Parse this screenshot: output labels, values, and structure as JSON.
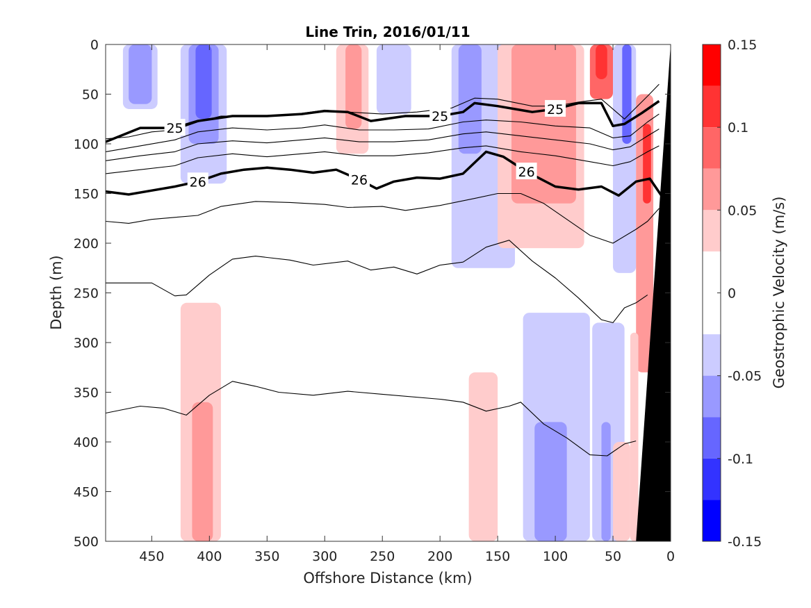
{
  "chart_data": {
    "type": "heatmap",
    "title": "Line Trin, 2016/01/11",
    "xlabel": "Offshore Distance (km)",
    "ylabel": "Depth (m)",
    "xlim": [
      490,
      0
    ],
    "ylim": [
      0,
      500
    ],
    "x_ticks": [
      "450",
      "400",
      "350",
      "300",
      "250",
      "200",
      "150",
      "100",
      "50",
      "0"
    ],
    "y_ticks": [
      "0",
      "50",
      "100",
      "150",
      "200",
      "250",
      "300",
      "350",
      "400",
      "450",
      "500"
    ],
    "colorbar": {
      "label": "Geostrophic Velocity (m/s)",
      "range": [
        -0.15,
        0.15
      ],
      "tick_labels": [
        "0.15",
        "0.1",
        "0.05",
        "0",
        "-0.05",
        "-0.1",
        "-0.15"
      ],
      "levels": [
        {
          "min": 0.125,
          "max": 0.15,
          "color": "#ff0000"
        },
        {
          "min": 0.1,
          "max": 0.125,
          "color": "#ff3333"
        },
        {
          "min": 0.075,
          "max": 0.1,
          "color": "#ff6666"
        },
        {
          "min": 0.05,
          "max": 0.075,
          "color": "#ff9999"
        },
        {
          "min": 0.025,
          "max": 0.05,
          "color": "#ffcccc"
        },
        {
          "min": 0.0,
          "max": 0.025,
          "color": "#ffffff"
        },
        {
          "min": -0.025,
          "max": 0.0,
          "color": "#ffffff"
        },
        {
          "min": -0.05,
          "max": -0.025,
          "color": "#ccccff"
        },
        {
          "min": -0.075,
          "max": -0.05,
          "color": "#9999ff"
        },
        {
          "min": -0.1,
          "max": -0.075,
          "color": "#6666ff"
        },
        {
          "min": -0.125,
          "max": -0.1,
          "color": "#3333ff"
        },
        {
          "min": -0.15,
          "max": -0.125,
          "color": "#0000ff"
        }
      ]
    },
    "velocity_patches": [
      {
        "v": -0.04,
        "x0": 475,
        "x1": 445,
        "y0": 0,
        "y1": 65
      },
      {
        "v": -0.06,
        "x0": 470,
        "x1": 450,
        "y0": 0,
        "y1": 60
      },
      {
        "v": -0.04,
        "x0": 425,
        "x1": 385,
        "y0": 0,
        "y1": 140
      },
      {
        "v": -0.07,
        "x0": 418,
        "x1": 392,
        "y0": 0,
        "y1": 100
      },
      {
        "v": -0.09,
        "x0": 412,
        "x1": 398,
        "y0": 0,
        "y1": 75
      },
      {
        "v": 0.035,
        "x0": 290,
        "x1": 262,
        "y0": 0,
        "y1": 110
      },
      {
        "v": 0.06,
        "x0": 282,
        "x1": 268,
        "y0": 0,
        "y1": 85
      },
      {
        "v": -0.035,
        "x0": 255,
        "x1": 225,
        "y0": 0,
        "y1": 70
      },
      {
        "v": -0.04,
        "x0": 190,
        "x1": 135,
        "y0": 0,
        "y1": 225
      },
      {
        "v": -0.07,
        "x0": 184,
        "x1": 164,
        "y0": 0,
        "y1": 110
      },
      {
        "v": 0.035,
        "x0": 150,
        "x1": 75,
        "y0": 0,
        "y1": 205
      },
      {
        "v": 0.06,
        "x0": 138,
        "x1": 82,
        "y0": 0,
        "y1": 160
      },
      {
        "v": 0.09,
        "x0": 70,
        "x1": 50,
        "y0": 0,
        "y1": 55
      },
      {
        "v": 0.12,
        "x0": 65,
        "x1": 55,
        "y0": 0,
        "y1": 35
      },
      {
        "v": -0.05,
        "x0": 50,
        "x1": 30,
        "y0": 0,
        "y1": 230
      },
      {
        "v": -0.08,
        "x0": 42,
        "x1": 34,
        "y0": 0,
        "y1": 100
      },
      {
        "v": 0.05,
        "x0": 30,
        "x1": 15,
        "y0": 50,
        "y1": 330
      },
      {
        "v": 0.1,
        "x0": 24,
        "x1": 17,
        "y0": 80,
        "y1": 160
      },
      {
        "v": 0.04,
        "x0": 425,
        "x1": 390,
        "y0": 260,
        "y1": 500
      },
      {
        "v": 0.07,
        "x0": 415,
        "x1": 397,
        "y0": 360,
        "y1": 500
      },
      {
        "v": 0.035,
        "x0": 175,
        "x1": 150,
        "y0": 330,
        "y1": 500
      },
      {
        "v": -0.035,
        "x0": 128,
        "x1": 70,
        "y0": 270,
        "y1": 500
      },
      {
        "v": -0.06,
        "x0": 118,
        "x1": 90,
        "y0": 380,
        "y1": 500
      },
      {
        "v": -0.035,
        "x0": 68,
        "x1": 40,
        "y0": 280,
        "y1": 500
      },
      {
        "v": -0.06,
        "x0": 60,
        "x1": 52,
        "y0": 380,
        "y1": 500
      },
      {
        "v": 0.04,
        "x0": 50,
        "x1": 35,
        "y0": 400,
        "y1": 500
      },
      {
        "v": 0.035,
        "x0": 35,
        "x1": 28,
        "y0": 290,
        "y1": 500
      }
    ],
    "density_contours": [
      {
        "label": "",
        "bold": false,
        "points": [
          [
            490,
            95
          ],
          [
            470,
            93
          ],
          [
            450,
            88
          ],
          [
            430,
            86
          ],
          [
            410,
            78
          ],
          [
            390,
            72
          ],
          [
            360,
            72
          ],
          [
            330,
            71
          ],
          [
            300,
            66
          ],
          [
            280,
            68
          ],
          [
            250,
            70
          ],
          [
            220,
            68
          ],
          [
            190,
            64
          ],
          [
            170,
            54
          ],
          [
            150,
            55
          ],
          [
            120,
            62
          ],
          [
            100,
            62
          ],
          [
            80,
            58
          ],
          [
            60,
            55
          ],
          [
            40,
            75
          ],
          [
            20,
            52
          ],
          [
            10,
            40
          ]
        ]
      },
      {
        "label": "25",
        "bold": true,
        "points": [
          [
            490,
            98
          ],
          [
            460,
            84
          ],
          [
            430,
            84
          ],
          [
            410,
            77
          ],
          [
            380,
            72
          ],
          [
            350,
            72
          ],
          [
            320,
            70
          ],
          [
            300,
            67
          ],
          [
            280,
            68
          ],
          [
            260,
            77
          ],
          [
            230,
            72
          ],
          [
            200,
            72
          ],
          [
            180,
            68
          ],
          [
            170,
            59
          ],
          [
            150,
            62
          ],
          [
            120,
            68
          ],
          [
            100,
            65
          ],
          [
            80,
            59
          ],
          [
            60,
            59
          ],
          [
            50,
            82
          ],
          [
            40,
            80
          ],
          [
            25,
            69
          ],
          [
            10,
            57
          ]
        ]
      },
      {
        "label": "",
        "bold": false,
        "points": [
          [
            490,
            108
          ],
          [
            460,
            102
          ],
          [
            430,
            96
          ],
          [
            410,
            88
          ],
          [
            380,
            84
          ],
          [
            350,
            86
          ],
          [
            320,
            84
          ],
          [
            300,
            81
          ],
          [
            270,
            86
          ],
          [
            240,
            86
          ],
          [
            210,
            85
          ],
          [
            180,
            78
          ],
          [
            160,
            76
          ],
          [
            130,
            78
          ],
          [
            100,
            82
          ],
          [
            70,
            84
          ],
          [
            50,
            94
          ],
          [
            35,
            92
          ],
          [
            20,
            78
          ],
          [
            10,
            70
          ]
        ]
      },
      {
        "label": "",
        "bold": false,
        "points": [
          [
            490,
            117
          ],
          [
            460,
            112
          ],
          [
            430,
            108
          ],
          [
            410,
            100
          ],
          [
            380,
            97
          ],
          [
            350,
            99
          ],
          [
            320,
            96
          ],
          [
            300,
            94
          ],
          [
            270,
            98
          ],
          [
            240,
            98
          ],
          [
            210,
            96
          ],
          [
            180,
            90
          ],
          [
            160,
            88
          ],
          [
            130,
            92
          ],
          [
            100,
            96
          ],
          [
            70,
            100
          ],
          [
            50,
            106
          ],
          [
            35,
            103
          ],
          [
            20,
            92
          ],
          [
            10,
            85
          ]
        ]
      },
      {
        "label": "",
        "bold": false,
        "points": [
          [
            490,
            130
          ],
          [
            460,
            126
          ],
          [
            430,
            122
          ],
          [
            410,
            114
          ],
          [
            380,
            110
          ],
          [
            350,
            113
          ],
          [
            320,
            110
          ],
          [
            300,
            108
          ],
          [
            270,
            112
          ],
          [
            240,
            112
          ],
          [
            210,
            109
          ],
          [
            180,
            104
          ],
          [
            160,
            102
          ],
          [
            130,
            108
          ],
          [
            100,
            112
          ],
          [
            70,
            118
          ],
          [
            50,
            122
          ],
          [
            35,
            118
          ],
          [
            20,
            108
          ],
          [
            10,
            102
          ]
        ]
      },
      {
        "label": "26",
        "bold": true,
        "points": [
          [
            490,
            148
          ],
          [
            470,
            151
          ],
          [
            450,
            147
          ],
          [
            430,
            143
          ],
          [
            410,
            138
          ],
          [
            390,
            130
          ],
          [
            370,
            126
          ],
          [
            350,
            124
          ],
          [
            330,
            126
          ],
          [
            310,
            129
          ],
          [
            290,
            126
          ],
          [
            270,
            136
          ],
          [
            255,
            145
          ],
          [
            240,
            138
          ],
          [
            220,
            134
          ],
          [
            200,
            135
          ],
          [
            180,
            130
          ],
          [
            160,
            108
          ],
          [
            145,
            113
          ],
          [
            125,
            128
          ],
          [
            100,
            143
          ],
          [
            80,
            146
          ],
          [
            60,
            143
          ],
          [
            45,
            152
          ],
          [
            30,
            138
          ],
          [
            18,
            135
          ],
          [
            8,
            152
          ]
        ]
      },
      {
        "label": "",
        "bold": false,
        "points": [
          [
            490,
            178
          ],
          [
            470,
            180
          ],
          [
            450,
            176
          ],
          [
            430,
            174
          ],
          [
            410,
            172
          ],
          [
            390,
            163
          ],
          [
            360,
            158
          ],
          [
            330,
            159
          ],
          [
            300,
            161
          ],
          [
            280,
            164
          ],
          [
            250,
            163
          ],
          [
            230,
            167
          ],
          [
            200,
            162
          ],
          [
            170,
            155
          ],
          [
            150,
            150
          ],
          [
            130,
            150
          ],
          [
            110,
            160
          ],
          [
            90,
            176
          ],
          [
            70,
            192
          ],
          [
            50,
            200
          ],
          [
            30,
            186
          ],
          [
            20,
            178
          ],
          [
            10,
            165
          ]
        ]
      },
      {
        "label": "",
        "bold": false,
        "points": [
          [
            490,
            240
          ],
          [
            450,
            240
          ],
          [
            430,
            253
          ],
          [
            420,
            252
          ],
          [
            400,
            232
          ],
          [
            380,
            216
          ],
          [
            360,
            213
          ],
          [
            330,
            217
          ],
          [
            310,
            222
          ],
          [
            280,
            218
          ],
          [
            260,
            227
          ],
          [
            240,
            224
          ],
          [
            220,
            231
          ],
          [
            200,
            222
          ],
          [
            180,
            219
          ],
          [
            160,
            204
          ],
          [
            140,
            197
          ],
          [
            120,
            218
          ],
          [
            100,
            235
          ],
          [
            80,
            255
          ],
          [
            60,
            277
          ],
          [
            50,
            280
          ],
          [
            40,
            265
          ],
          [
            30,
            260
          ],
          [
            20,
            252
          ]
        ]
      },
      {
        "label": "",
        "bold": false,
        "points": [
          [
            490,
            371
          ],
          [
            460,
            364
          ],
          [
            440,
            366
          ],
          [
            420,
            373
          ],
          [
            400,
            353
          ],
          [
            380,
            339
          ],
          [
            360,
            344
          ],
          [
            340,
            350
          ],
          [
            310,
            353
          ],
          [
            280,
            349
          ],
          [
            250,
            352
          ],
          [
            200,
            357
          ],
          [
            180,
            360
          ],
          [
            160,
            369
          ],
          [
            140,
            364
          ],
          [
            130,
            360
          ],
          [
            110,
            382
          ],
          [
            90,
            396
          ],
          [
            70,
            413
          ],
          [
            55,
            414
          ],
          [
            40,
            402
          ],
          [
            30,
            399
          ]
        ]
      }
    ]
  }
}
